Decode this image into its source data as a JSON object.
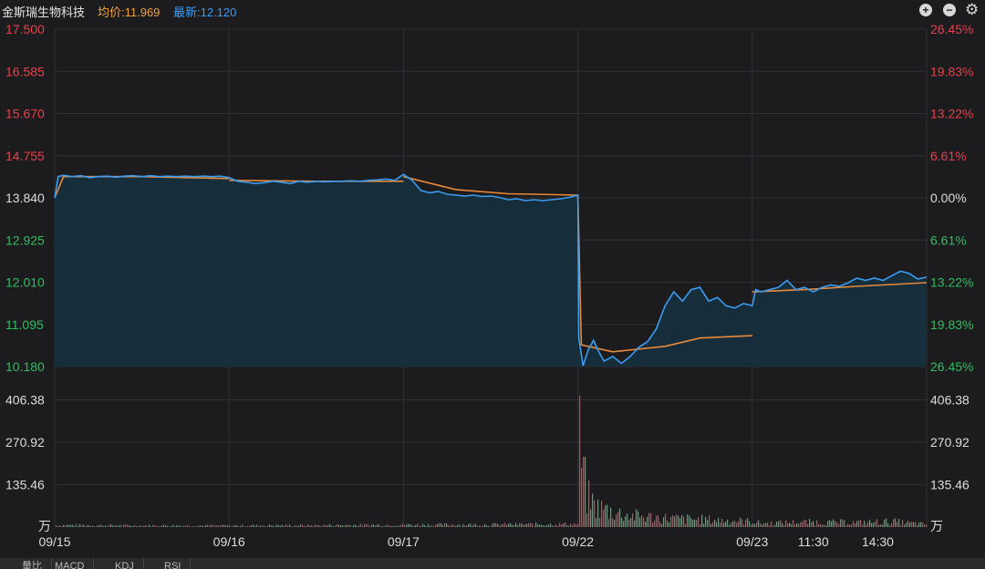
{
  "header": {
    "stock_name": "金斯瑞生物科技",
    "avg_label": "均价:11.969",
    "last_label": "最新:12.120",
    "zoom_in_icon": "plus-circle-icon",
    "zoom_out_icon": "minus-circle-icon",
    "settings_icon": "gear-icon"
  },
  "colors": {
    "background": "#1c1c1e",
    "price_line": "#3b9cf0",
    "avg_line": "#e8893a",
    "up": "#e8404a",
    "down": "#2fbf5f",
    "grid": "#2f3034",
    "area_fill": "#16303f"
  },
  "tabs": [
    "量比",
    "MACD",
    "KDJ",
    "RSI"
  ],
  "chart_data": {
    "type": "line",
    "title": "",
    "price_axis": {
      "ticks_left": [
        "17.500",
        "16.585",
        "15.670",
        "14.755",
        "13.840",
        "12.925",
        "12.010",
        "11.095",
        "10.180"
      ],
      "ticks_right": [
        "26.45%",
        "19.83%",
        "13.22%",
        "6.61%",
        "0.00%",
        "6.61%",
        "13.22%",
        "19.83%",
        "26.45%"
      ],
      "ylim": [
        10.18,
        17.5
      ],
      "base": 13.84
    },
    "volume_axis": {
      "ticks": [
        "406.38",
        "270.92",
        "135.46"
      ],
      "unit": "万",
      "ylim": [
        0,
        541.84
      ]
    },
    "x_axis": {
      "labels": [
        "09/15",
        "09/16",
        "09/17",
        "09/22",
        "09/23",
        "11:30",
        "14:30"
      ]
    },
    "days": [
      "09/15",
      "09/16",
      "09/17",
      "09/22",
      "09/23"
    ],
    "series": [
      {
        "key": "price",
        "points": [
          [
            0,
            13.84
          ],
          [
            0.02,
            14.3
          ],
          [
            0.05,
            14.33
          ],
          [
            0.1,
            14.3
          ],
          [
            0.15,
            14.32
          ],
          [
            0.2,
            14.28
          ],
          [
            0.25,
            14.3
          ],
          [
            0.3,
            14.31
          ],
          [
            0.35,
            14.29
          ],
          [
            0.4,
            14.31
          ],
          [
            0.45,
            14.32
          ],
          [
            0.5,
            14.3
          ],
          [
            0.55,
            14.32
          ],
          [
            0.6,
            14.3
          ],
          [
            0.65,
            14.31
          ],
          [
            0.7,
            14.3
          ],
          [
            0.75,
            14.31
          ],
          [
            0.8,
            14.3
          ],
          [
            0.85,
            14.31
          ],
          [
            0.9,
            14.3
          ],
          [
            0.95,
            14.31
          ],
          [
            1.0,
            14.28
          ],
          [
            1.05,
            14.2
          ],
          [
            1.1,
            14.18
          ],
          [
            1.15,
            14.15
          ],
          [
            1.2,
            14.17
          ],
          [
            1.25,
            14.2
          ],
          [
            1.3,
            14.18
          ],
          [
            1.35,
            14.15
          ],
          [
            1.4,
            14.2
          ],
          [
            1.45,
            14.18
          ],
          [
            1.5,
            14.2
          ],
          [
            1.55,
            14.19
          ],
          [
            1.6,
            14.2
          ],
          [
            1.65,
            14.2
          ],
          [
            1.7,
            14.21
          ],
          [
            1.75,
            14.2
          ],
          [
            1.8,
            14.22
          ],
          [
            1.85,
            14.23
          ],
          [
            1.9,
            14.25
          ],
          [
            1.95,
            14.22
          ],
          [
            2.0,
            14.35
          ],
          [
            2.05,
            14.22
          ],
          [
            2.1,
            14.0
          ],
          [
            2.15,
            13.95
          ],
          [
            2.2,
            13.98
          ],
          [
            2.25,
            13.92
          ],
          [
            2.3,
            13.9
          ],
          [
            2.35,
            13.88
          ],
          [
            2.4,
            13.9
          ],
          [
            2.45,
            13.87
          ],
          [
            2.5,
            13.88
          ],
          [
            2.55,
            13.85
          ],
          [
            2.6,
            13.8
          ],
          [
            2.65,
            13.82
          ],
          [
            2.7,
            13.78
          ],
          [
            2.75,
            13.8
          ],
          [
            2.8,
            13.78
          ],
          [
            2.85,
            13.8
          ],
          [
            2.9,
            13.82
          ],
          [
            2.95,
            13.85
          ],
          [
            3.0,
            13.9
          ],
          [
            3.005,
            10.8
          ],
          [
            3.03,
            10.2
          ],
          [
            3.06,
            10.55
          ],
          [
            3.09,
            10.75
          ],
          [
            3.12,
            10.5
          ],
          [
            3.15,
            10.3
          ],
          [
            3.2,
            10.4
          ],
          [
            3.25,
            10.25
          ],
          [
            3.3,
            10.4
          ],
          [
            3.35,
            10.6
          ],
          [
            3.4,
            10.72
          ],
          [
            3.45,
            11.0
          ],
          [
            3.5,
            11.5
          ],
          [
            3.55,
            11.8
          ],
          [
            3.6,
            11.6
          ],
          [
            3.65,
            11.85
          ],
          [
            3.7,
            11.9
          ],
          [
            3.75,
            11.6
          ],
          [
            3.8,
            11.68
          ],
          [
            3.85,
            11.5
          ],
          [
            3.9,
            11.45
          ],
          [
            3.95,
            11.55
          ],
          [
            4.0,
            11.5
          ],
          [
            4.02,
            11.85
          ],
          [
            4.05,
            11.8
          ],
          [
            4.1,
            11.85
          ],
          [
            4.15,
            11.9
          ],
          [
            4.2,
            12.05
          ],
          [
            4.25,
            11.85
          ],
          [
            4.3,
            11.9
          ],
          [
            4.35,
            11.8
          ],
          [
            4.4,
            11.9
          ],
          [
            4.45,
            11.95
          ],
          [
            4.5,
            11.92
          ],
          [
            4.55,
            12.0
          ],
          [
            4.6,
            12.1
          ],
          [
            4.65,
            12.05
          ],
          [
            4.7,
            12.1
          ],
          [
            4.75,
            12.05
          ],
          [
            4.8,
            12.15
          ],
          [
            4.85,
            12.25
          ],
          [
            4.9,
            12.2
          ],
          [
            4.95,
            12.08
          ],
          [
            5.0,
            12.12
          ]
        ]
      },
      {
        "key": "average",
        "points": [
          [
            0,
            13.84
          ],
          [
            0.05,
            14.3
          ],
          [
            0.5,
            14.3
          ],
          [
            1.0,
            14.26
          ],
          [
            1.0,
            14.22
          ],
          [
            1.5,
            14.2
          ],
          [
            2.0,
            14.2
          ],
          [
            2.0,
            14.3
          ],
          [
            2.3,
            14.02
          ],
          [
            2.6,
            13.93
          ],
          [
            3.0,
            13.9
          ],
          [
            3.02,
            10.65
          ],
          [
            3.2,
            10.5
          ],
          [
            3.5,
            10.62
          ],
          [
            3.7,
            10.8
          ],
          [
            4.0,
            10.85
          ],
          [
            4.0,
            11.8
          ],
          [
            4.3,
            11.85
          ],
          [
            4.6,
            11.92
          ],
          [
            5.0,
            12.0
          ]
        ]
      }
    ],
    "volume_profile": [
      [
        0,
        8
      ],
      [
        0.5,
        6
      ],
      [
        1.0,
        6
      ],
      [
        1.5,
        7
      ],
      [
        2.0,
        9
      ],
      [
        2.5,
        10
      ],
      [
        3.0,
        12
      ],
      [
        3.005,
        420
      ],
      [
        3.02,
        250
      ],
      [
        3.05,
        120
      ],
      [
        3.1,
        80
      ],
      [
        3.2,
        60
      ],
      [
        3.3,
        45
      ],
      [
        3.5,
        35
      ],
      [
        3.7,
        30
      ],
      [
        4.0,
        22
      ],
      [
        4.05,
        15
      ],
      [
        4.3,
        20
      ],
      [
        4.6,
        18
      ],
      [
        4.8,
        22
      ],
      [
        5.0,
        10
      ]
    ],
    "legend": "none",
    "grid": true
  }
}
